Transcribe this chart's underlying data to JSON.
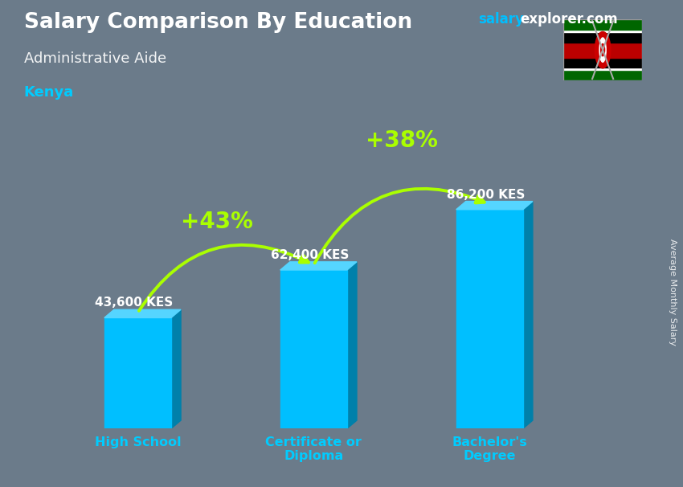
{
  "title": "Salary Comparison By Education",
  "subtitle": "Administrative Aide",
  "country": "Kenya",
  "watermark_salary": "salary",
  "watermark_rest": "explorer.com",
  "ylabel": "Average Monthly Salary",
  "categories": [
    "High School",
    "Certificate or\nDiploma",
    "Bachelor's\nDegree"
  ],
  "values": [
    43600,
    62400,
    86200
  ],
  "labels": [
    "43,600 KES",
    "62,400 KES",
    "86,200 KES"
  ],
  "pct_changes": [
    "+43%",
    "+38%"
  ],
  "bar_color_face": "#00BFFF",
  "bar_color_dark": "#0080AA",
  "bar_color_top": "#55D5FF",
  "bg_color": "#6B7B8A",
  "title_color": "#FFFFFF",
  "subtitle_color": "#FFFFFF",
  "country_color": "#00CCFF",
  "label_color": "#FFFFFF",
  "category_color": "#00CCFF",
  "pct_color": "#AAFF00",
  "watermark_salary_color": "#00BFFF",
  "watermark_explorer_color": "#FFFFFF",
  "ylabel_color": "#FFFFFF",
  "bar_width": 0.38,
  "bar_positions": [
    1.0,
    2.0,
    3.0
  ],
  "ylim": [
    0,
    115000
  ],
  "xlim": [
    0.45,
    3.75
  ]
}
